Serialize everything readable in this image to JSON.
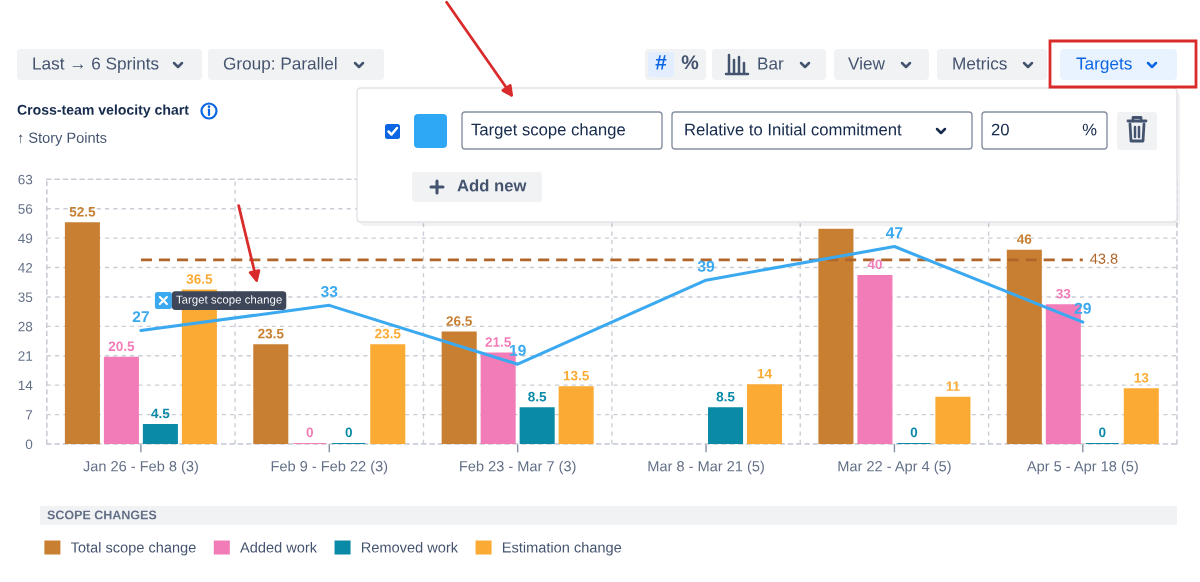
{
  "chart_data": {
    "type": "bar",
    "title": "Cross-team velocity chart",
    "ylabel": "↑ Story Points",
    "legend_title": "SCOPE CHANGES",
    "categories": [
      "Jan 26 - Feb 8 (3)",
      "Feb 9 - Feb 22 (3)",
      "Feb 23 - Mar 7 (3)",
      "Mar 8 - Mar 21 (5)",
      "Mar 22 - Apr 4 (5)",
      "Apr 5 - Apr 18 (5)"
    ],
    "series": [
      {
        "name": "Total scope change",
        "color": "#c87f32",
        "values": [
          52.5,
          23.5,
          26.5,
          null,
          51,
          46
        ],
        "value_labels": [
          "52.5",
          "23.5",
          "26.5",
          null,
          null,
          "46"
        ]
      },
      {
        "name": "Added work",
        "color": "#f27cb8",
        "values": [
          20.5,
          0,
          21.5,
          null,
          40,
          33
        ],
        "value_labels": [
          "20.5",
          "0",
          "21.5",
          null,
          "40",
          "33"
        ]
      },
      {
        "name": "Removed work",
        "color": "#0a8aa6",
        "values": [
          4.5,
          0,
          8.5,
          8.5,
          0,
          0
        ],
        "value_labels": [
          "4.5",
          "0",
          "8.5",
          "8.5",
          "0",
          "0"
        ]
      },
      {
        "name": "Estimation change",
        "color": "#fbab34",
        "values": [
          36.5,
          23.5,
          13.5,
          14,
          11,
          13
        ],
        "value_labels": [
          "36.5",
          "23.5",
          "13.5",
          "14",
          "11",
          "13"
        ]
      },
      {
        "name": "Target scope change",
        "type": "line",
        "color": "#3ba9f0",
        "values": [
          27,
          33,
          19,
          39,
          47,
          29
        ],
        "value_labels": [
          "27",
          "33",
          "19",
          "39",
          "47",
          "29"
        ]
      }
    ],
    "ylim": [
      0,
      63
    ],
    "yticks": [
      0,
      7,
      14,
      21,
      28,
      35,
      42,
      49,
      56,
      63
    ],
    "grid": true,
    "legend": "bottom",
    "ref_lines": [
      {
        "axis": "y",
        "value": 43.8,
        "label": "43.8",
        "color": "#b0662a",
        "line_style": "dashed"
      }
    ],
    "annotations": [
      "Last → 6 Sprints",
      "Group: Parallel",
      "#",
      "%",
      "Bar",
      "View",
      "Metrics",
      "Targets",
      "Target scope change",
      "Relative to Initial commitment",
      "20",
      "%",
      "Add new"
    ]
  }
}
